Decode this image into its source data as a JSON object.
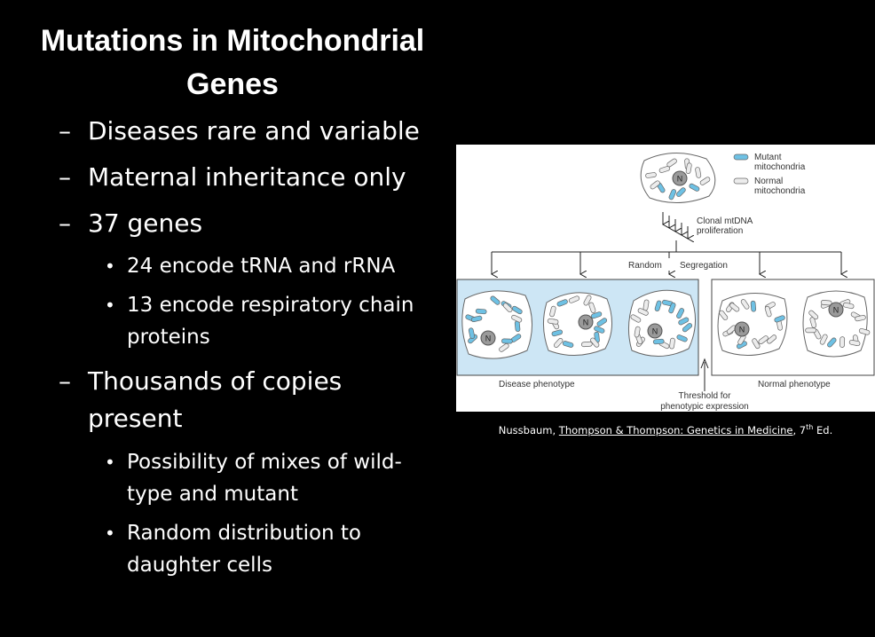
{
  "slide": {
    "title_line1": "Mutations in Mitochondrial",
    "title_line2": "Genes",
    "bullets": [
      {
        "dash": "–",
        "text": "Diseases rare and variable"
      },
      {
        "dash": "–",
        "text": "Maternal inheritance only"
      },
      {
        "dash": "–",
        "text": "37 genes"
      },
      {
        "dot": "•",
        "text": "24 encode tRNA and rRNA"
      },
      {
        "dot": "•",
        "text_line1": "13 encode respiratory chain",
        "text_line2": "proteins"
      },
      {
        "dash": "–",
        "text_line1": "Thousands of copies",
        "text_line2": "present"
      },
      {
        "dot": "•",
        "text_line1": "Possibility of mixes of wild-",
        "text_line2": "type and mutant"
      },
      {
        "dot": "•",
        "text_line1": "Random distribution to",
        "text_line2": "daughter cells"
      }
    ]
  },
  "figure": {
    "legend_mutant": [
      "Mutant",
      "mitochondria"
    ],
    "legend_normal": [
      "Normal",
      "mitochondria"
    ],
    "proliferation": [
      "Clonal mtDNA",
      "proliferation"
    ],
    "random": "Random",
    "segregation": "Segregation",
    "nucleus": "N",
    "disease": "Disease phenotype",
    "normal": "Normal phenotype",
    "threshold": [
      "Threshold for",
      "phenotypic expression"
    ],
    "colors": {
      "mutant": "#6ec1e4",
      "normal": "#ececec",
      "disease_box": "#cde6f5"
    }
  },
  "caption": {
    "author": "Nussbaum, ",
    "book": "Thompson & Thompson: Genetics in Medicine",
    "edition_pre": ", 7",
    "edition_sup": "th",
    "edition_post": " Ed."
  }
}
